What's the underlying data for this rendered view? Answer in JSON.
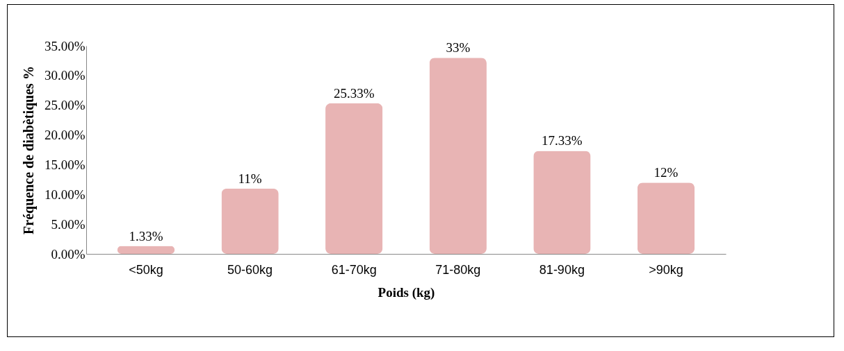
{
  "chart_data": {
    "type": "bar",
    "xlabel": "Poids (kg)",
    "ylabel": "Fréquence de diabètiques %",
    "categories": [
      "<50kg",
      "50-60kg",
      "61-70kg",
      "71-80kg",
      "81-90kg",
      ">90kg"
    ],
    "values": [
      1.33,
      11,
      25.33,
      33,
      17.33,
      12
    ],
    "value_labels": [
      "1.33%",
      "11%",
      "25.33%",
      "33%",
      "17.33%",
      "12%"
    ],
    "color": "#e8b4b4",
    "ylim": [
      0,
      35
    ],
    "yticks": [
      {
        "value": 0,
        "label": "0.00%"
      },
      {
        "value": 5,
        "label": "5.00%"
      },
      {
        "value": 10,
        "label": "10.00%"
      },
      {
        "value": 15,
        "label": "15.00%"
      },
      {
        "value": 20,
        "label": "20.00%"
      },
      {
        "value": 25,
        "label": "25.00%"
      },
      {
        "value": 30,
        "label": "30.00%"
      },
      {
        "value": 35,
        "label": "35.00%"
      }
    ],
    "grid": false
  }
}
